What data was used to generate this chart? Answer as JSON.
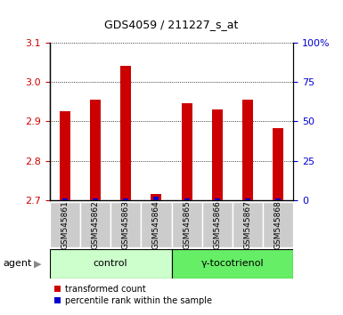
{
  "title": "GDS4059 / 211227_s_at",
  "samples": [
    "GSM545861",
    "GSM545862",
    "GSM545863",
    "GSM545864",
    "GSM545865",
    "GSM545866",
    "GSM545867",
    "GSM545868"
  ],
  "red_values": [
    2.925,
    2.955,
    3.04,
    2.715,
    2.945,
    2.93,
    2.955,
    2.882
  ],
  "blue_values": [
    1.0,
    1.0,
    1.0,
    2.0,
    1.0,
    1.0,
    1.0,
    1.0
  ],
  "ylim_left": [
    2.7,
    3.1
  ],
  "ylim_right": [
    0,
    100
  ],
  "yticks_left": [
    2.7,
    2.8,
    2.9,
    3.0,
    3.1
  ],
  "yticks_right": [
    0,
    25,
    50,
    75,
    100
  ],
  "ytick_labels_right": [
    "0",
    "25",
    "50",
    "75",
    "100%"
  ],
  "groups": [
    {
      "label": "control",
      "indices": [
        0,
        1,
        2,
        3
      ],
      "color": "#ccffcc"
    },
    {
      "label": "γ-tocotrienol",
      "indices": [
        4,
        5,
        6,
        7
      ],
      "color": "#66ee66"
    }
  ],
  "group_row_label": "agent",
  "red_bar_width": 0.35,
  "blue_bar_width": 0.18,
  "red_color": "#cc0000",
  "blue_color": "#0000cc",
  "grid_color": "black",
  "legend_red": "transformed count",
  "legend_blue": "percentile rank within the sample",
  "tick_label_color_left": "#cc0000",
  "tick_label_color_right": "#0000cc",
  "base_value": 2.7,
  "xtick_box_color": "#cccccc",
  "xtick_box_edge": "#999999"
}
